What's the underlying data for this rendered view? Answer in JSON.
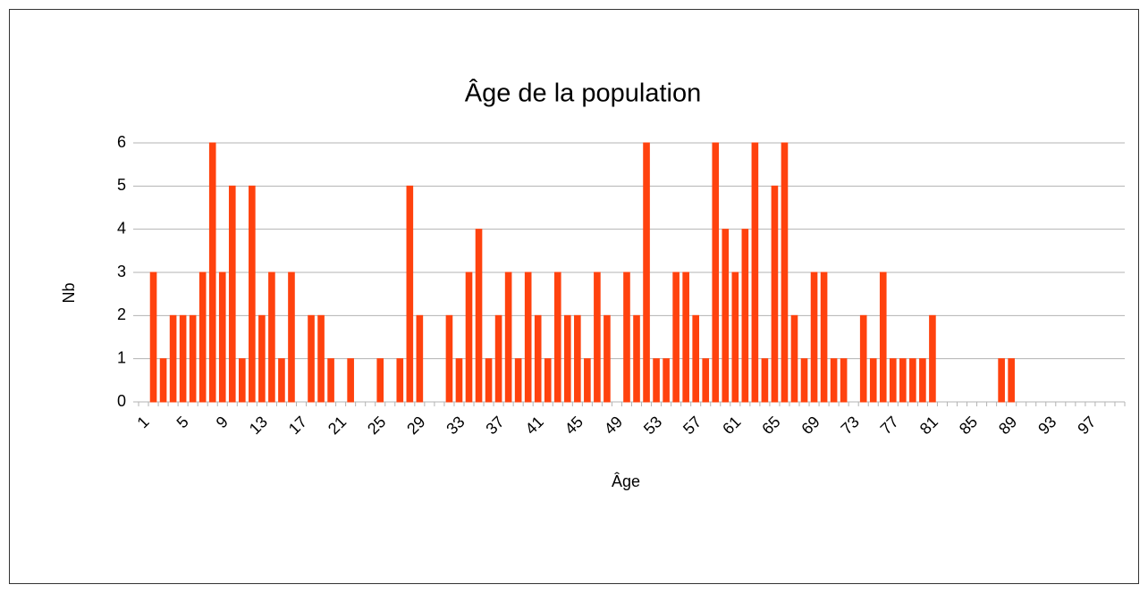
{
  "chart_data": {
    "type": "bar",
    "title": "Âge de la population",
    "x_label": "Âge",
    "y_label": "Nb",
    "categories": [
      "1",
      null,
      null,
      null,
      "5",
      null,
      null,
      null,
      "9",
      null,
      null,
      null,
      "13",
      null,
      null,
      null,
      "17",
      null,
      null,
      null,
      "21",
      null,
      null,
      null,
      "25",
      null,
      null,
      null,
      "29",
      null,
      null,
      null,
      "33",
      null,
      null,
      null,
      "37",
      null,
      null,
      null,
      "41",
      null,
      null,
      null,
      "45",
      null,
      null,
      null,
      "49",
      null,
      null,
      null,
      "53",
      null,
      null,
      null,
      "57",
      null,
      null,
      null,
      "61",
      null,
      null,
      null,
      "65",
      null,
      null,
      null,
      "69",
      null,
      null,
      null,
      "73",
      null,
      null,
      null,
      "77",
      null,
      null,
      null,
      "81",
      null,
      null,
      null,
      "85",
      null,
      null,
      null,
      "89",
      null,
      null,
      null,
      "93",
      null,
      null,
      null,
      "97",
      null,
      null,
      null
    ],
    "values": [
      0,
      3,
      1,
      2,
      2,
      2,
      3,
      6,
      3,
      5,
      1,
      5,
      2,
      3,
      1,
      3,
      0,
      2,
      2,
      1,
      0,
      1,
      0,
      0,
      1,
      0,
      1,
      5,
      2,
      0,
      0,
      2,
      1,
      3,
      4,
      1,
      2,
      3,
      1,
      3,
      2,
      1,
      3,
      2,
      2,
      1,
      3,
      2,
      0,
      3,
      2,
      6,
      1,
      1,
      3,
      3,
      2,
      1,
      6,
      4,
      3,
      4,
      6,
      1,
      5,
      6,
      2,
      1,
      3,
      3,
      1,
      1,
      0,
      2,
      1,
      3,
      1,
      1,
      1,
      1,
      2,
      0,
      0,
      0,
      0,
      0,
      0,
      1,
      1,
      0,
      0,
      0,
      0,
      0,
      0,
      0,
      0,
      0,
      0,
      0
    ],
    "color": "#ff420e",
    "ylim": [
      0,
      6
    ],
    "yticks": [
      0,
      1,
      2,
      3,
      4,
      5,
      6
    ],
    "grid": true
  }
}
